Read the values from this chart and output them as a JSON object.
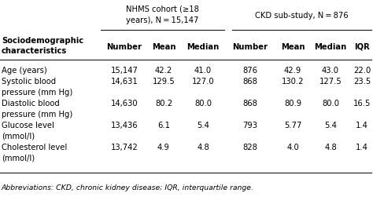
{
  "col_headers": [
    "Number",
    "Mean",
    "Median",
    "Number",
    "Mean",
    "Median",
    "IQR"
  ],
  "rows": [
    [
      "Age (years)",
      "15,147",
      "42.2",
      "41.0",
      "876",
      "42.9",
      "43.0",
      "22.0"
    ],
    [
      "Systolic blood\npressure (mm Hg)",
      "14,631",
      "129.5",
      "127.0",
      "868",
      "130.2",
      "127.5",
      "23.5"
    ],
    [
      "Diastolic blood\npressure (mm Hg)",
      "14,630",
      "80.2",
      "80.0",
      "868",
      "80.9",
      "80.0",
      "16.5"
    ],
    [
      "Glucose level\n(mmol/l)",
      "13,436",
      "6.1",
      "5.4",
      "793",
      "5.77",
      "5.4",
      "1.4"
    ],
    [
      "Cholesterol level\n(mmol/l)",
      "13,742",
      "4.9",
      "4.8",
      "828",
      "4.0",
      "4.8",
      "1.4"
    ]
  ],
  "nhms_line1": "NHMS cohort (≥18",
  "nhms_line2": "years), N = 15,147",
  "ckd_header": "CKD sub-study, N = 876",
  "left_header1": "Sociodemographic",
  "left_header2": "characteristics",
  "footnote": "Abbreviations: CKD, chronic kidney disease; IQR, interquartile range.",
  "bg_color": "#ffffff",
  "text_color": "#000000",
  "fs": 7.2
}
